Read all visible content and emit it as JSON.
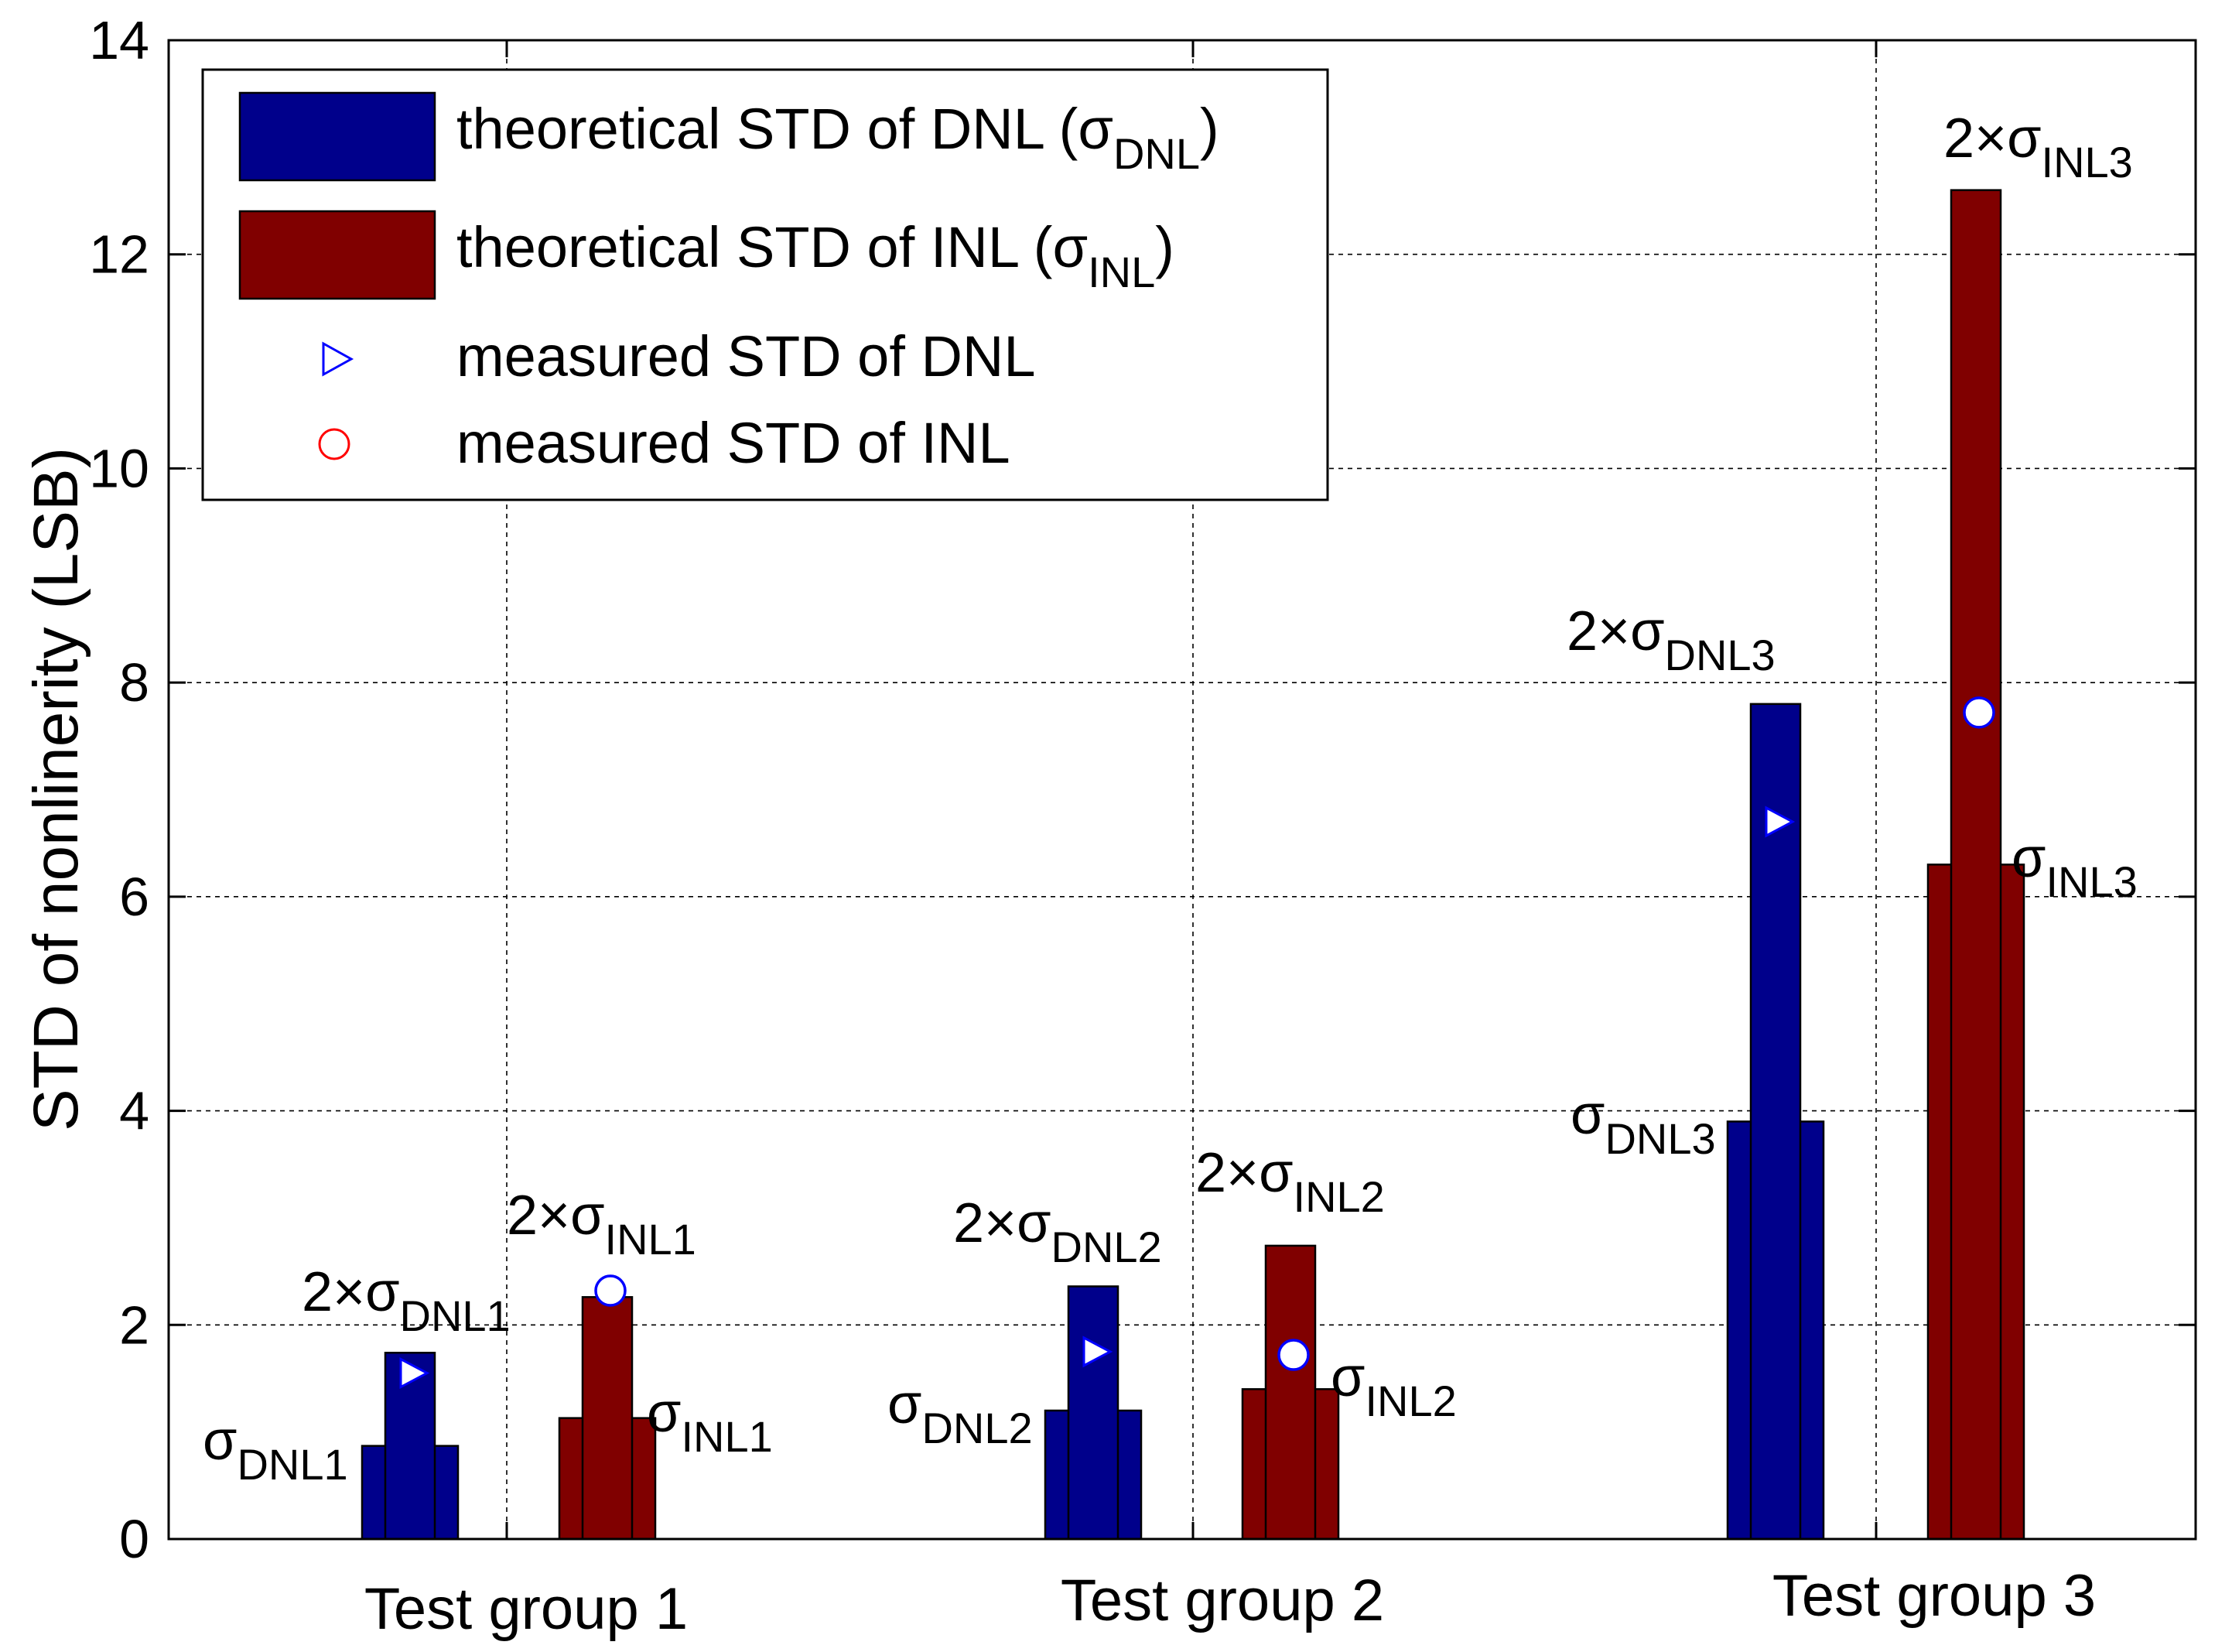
{
  "chart_data": {
    "type": "bar",
    "title": "",
    "xlabel": "",
    "ylabel": "STD of nonlinerity (LSB)",
    "ylim": [
      0,
      14
    ],
    "yticks": [
      "0",
      "2",
      "4",
      "6",
      "8",
      "10",
      "12",
      "14"
    ],
    "grid": true,
    "legend_placement": "top-left",
    "categories": [
      "Test group 1",
      "Test group 2",
      "Test group 3"
    ],
    "series": [
      {
        "name": "theoretical STD of DNL (σDNL)",
        "color": "#00008b",
        "sigma": [
          0.87,
          1.2,
          3.9
        ],
        "two_sigma": [
          1.74,
          2.36,
          7.8
        ]
      },
      {
        "name": "theoretical STD of INL (σINL)",
        "color": "#800000",
        "sigma": [
          1.13,
          1.4,
          6.3
        ],
        "two_sigma": [
          2.26,
          2.74,
          12.6
        ]
      },
      {
        "name": "measured STD of DNL",
        "marker": "triangle-right",
        "color": "#0000ff",
        "values": [
          1.55,
          1.75,
          6.7
        ]
      },
      {
        "name": "measured STD of INL",
        "marker": "circle",
        "color": "#0000ff",
        "values": [
          2.32,
          1.72,
          7.72
        ]
      }
    ],
    "legend": [
      {
        "pre": "theoretical STD of DNL (",
        "sym": "σ",
        "sub": "DNL",
        "post": ")"
      },
      {
        "pre": "theoretical STD of INL (",
        "sym": "σ",
        "sub": "INL",
        "post": ")"
      },
      {
        "pre": "measured STD of DNL",
        "sym": "",
        "sub": "",
        "post": ""
      },
      {
        "pre": "measured STD of INL",
        "sym": "",
        "sub": "",
        "post": ""
      }
    ],
    "annotations": [
      {
        "pre": "",
        "sym": "σ",
        "sub": "DNL1"
      },
      {
        "pre": "2×",
        "sym": "σ",
        "sub": "DNL1"
      },
      {
        "pre": "2×",
        "sym": "σ",
        "sub": "INL1"
      },
      {
        "pre": "",
        "sym": "σ",
        "sub": "INL1"
      },
      {
        "pre": "",
        "sym": "σ",
        "sub": "DNL2"
      },
      {
        "pre": "2×",
        "sym": "σ",
        "sub": "DNL2"
      },
      {
        "pre": "2×",
        "sym": "σ",
        "sub": "INL2"
      },
      {
        "pre": "",
        "sym": "σ",
        "sub": "INL2"
      },
      {
        "pre": "",
        "sym": "σ",
        "sub": "DNL3"
      },
      {
        "pre": "2×",
        "sym": "σ",
        "sub": "DNL3"
      },
      {
        "pre": "2×",
        "sym": "σ",
        "sub": "INL3"
      },
      {
        "pre": "",
        "sym": "σ",
        "sub": "INL3"
      }
    ]
  }
}
